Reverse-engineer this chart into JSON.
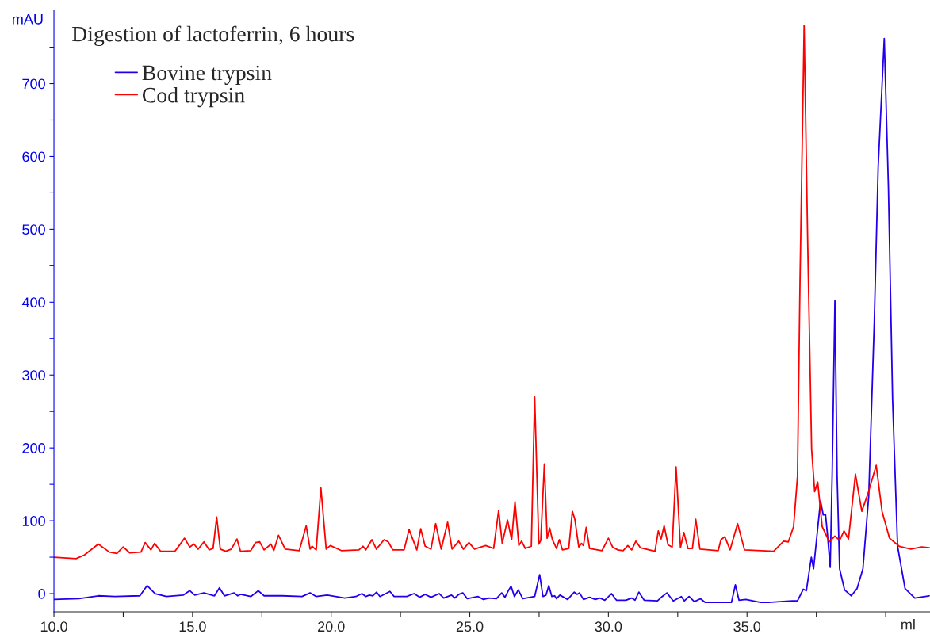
{
  "chart_data": {
    "type": "line",
    "title": "Digestion of lactoferrin, 6 hours",
    "xlabel": "ml",
    "ylabel": "mAU",
    "xlim": [
      10,
      41.6
    ],
    "ylim": [
      -25,
      800
    ],
    "xticks": [
      {
        "value": 10,
        "label": "10.0"
      },
      {
        "value": 12.5,
        "label": null
      },
      {
        "value": 15,
        "label": "15.0"
      },
      {
        "value": 17.5,
        "label": null
      },
      {
        "value": 20,
        "label": "20.0"
      },
      {
        "value": 22.5,
        "label": null
      },
      {
        "value": 25,
        "label": "25.0"
      },
      {
        "value": 27.5,
        "label": null
      },
      {
        "value": 30,
        "label": "30.0"
      },
      {
        "value": 32.5,
        "label": null
      },
      {
        "value": 35,
        "label": "35.0"
      },
      {
        "value": 37.5,
        "label": null
      },
      {
        "value": 40,
        "label": null
      }
    ],
    "yticks": [
      0,
      {
        "value": 50,
        "label": null
      },
      100,
      {
        "value": 150,
        "label": null
      },
      200,
      {
        "value": 250,
        "label": null
      },
      300,
      {
        "value": 350,
        "label": null
      },
      400,
      {
        "value": 450,
        "label": null
      },
      500,
      {
        "value": 550,
        "label": null
      },
      600,
      {
        "value": 650,
        "label": null
      },
      700,
      {
        "value": 750,
        "label": null
      }
    ],
    "legend": "top left",
    "grid": false,
    "marker": "none",
    "line_style": "solid",
    "series": [
      {
        "name": "Bovine trypsin",
        "color": "#2200ee",
        "x": [
          10.0,
          10.9,
          11.6,
          12.2,
          13.1,
          13.36,
          13.65,
          14.06,
          14.67,
          14.9,
          15.08,
          15.41,
          15.79,
          15.97,
          16.15,
          16.5,
          16.63,
          16.73,
          17.1,
          17.37,
          17.58,
          18.23,
          18.95,
          19.24,
          19.46,
          19.86,
          20.49,
          20.89,
          21.11,
          21.25,
          21.38,
          21.5,
          21.64,
          21.76,
          22.12,
          22.27,
          22.73,
          22.99,
          23.19,
          23.39,
          23.6,
          23.9,
          24.06,
          24.34,
          24.46,
          24.61,
          24.75,
          24.91,
          25.3,
          25.49,
          25.69,
          25.96,
          26.15,
          26.27,
          26.39,
          26.49,
          26.61,
          26.75,
          26.91,
          27.34,
          27.52,
          27.64,
          27.75,
          27.85,
          27.96,
          28.06,
          28.13,
          28.25,
          28.53,
          28.77,
          28.87,
          28.96,
          29.1,
          29.32,
          29.53,
          29.68,
          29.87,
          30.11,
          30.29,
          30.63,
          30.84,
          30.96,
          31.1,
          31.29,
          31.77,
          31.94,
          32.11,
          32.34,
          32.63,
          32.74,
          32.91,
          33.1,
          33.32,
          33.49,
          34.44,
          34.58,
          34.71,
          34.96,
          35.49,
          35.77,
          36.63,
          36.82,
          37.03,
          37.14,
          37.32,
          37.4,
          37.65,
          37.75,
          37.83,
          37.9,
          38.0,
          38.07,
          38.17,
          38.25,
          38.34,
          38.52,
          38.76,
          38.97,
          39.18,
          39.39,
          39.59,
          39.73,
          39.95,
          40.1,
          40.25,
          40.43,
          40.7,
          41.05,
          41.57
        ],
        "values": [
          -8,
          -7,
          -3,
          -4,
          -3,
          11,
          0,
          -4,
          -2,
          4,
          -2,
          1,
          -3,
          8,
          -3,
          1,
          -3,
          -1,
          -4,
          4,
          -3,
          -3,
          -4,
          1,
          -4,
          -2,
          -6,
          -4,
          0,
          -4,
          -2,
          -3,
          2,
          -4,
          3,
          -4,
          -4,
          0,
          -5,
          -1,
          -5,
          0,
          -6,
          -2,
          -6,
          -1,
          1,
          -7,
          -4,
          -8,
          -6,
          -7,
          1,
          -5,
          4,
          10,
          -4,
          5,
          -7,
          -4,
          26,
          -4,
          -2,
          11,
          -4,
          -3,
          -7,
          -2,
          -8,
          2,
          -1,
          1,
          -8,
          -5,
          -8,
          -6,
          -9,
          0,
          -9,
          -9,
          -6,
          -9,
          2,
          -9,
          -10,
          -4,
          1,
          -10,
          -4,
          -10,
          -4,
          -11,
          -7,
          -12,
          -12,
          12,
          -9,
          -8,
          -12,
          -12,
          -10,
          -10,
          6,
          4,
          50,
          34,
          127,
          108,
          109,
          82,
          36,
          161,
          402,
          161,
          34,
          5,
          -3,
          7,
          34,
          134,
          373,
          585,
          762,
          558,
          267,
          65,
          7,
          -6,
          -3
        ]
      },
      {
        "name": "Cod trypsin",
        "color": "#ff0000",
        "x": [
          10.0,
          10.8,
          11.1,
          11.6,
          12.0,
          12.27,
          12.5,
          12.73,
          13.14,
          13.29,
          13.5,
          13.63,
          13.85,
          14.36,
          14.46,
          14.71,
          14.9,
          15.05,
          15.2,
          15.41,
          15.6,
          15.74,
          15.87,
          16.0,
          16.2,
          16.4,
          16.6,
          16.73,
          17.1,
          17.27,
          17.42,
          17.58,
          17.83,
          17.93,
          18.1,
          18.34,
          18.85,
          19.1,
          19.24,
          19.31,
          19.46,
          19.63,
          19.82,
          19.97,
          20.37,
          21.0,
          21.15,
          21.25,
          21.47,
          21.63,
          21.91,
          22.06,
          22.22,
          22.63,
          22.81,
          23.09,
          23.23,
          23.39,
          23.6,
          23.77,
          23.97,
          24.2,
          24.36,
          24.6,
          24.77,
          24.97,
          25.17,
          25.57,
          25.86,
          26.04,
          26.17,
          26.36,
          26.51,
          26.63,
          26.77,
          26.87,
          27.0,
          27.22,
          27.34,
          27.49,
          27.56,
          27.69,
          27.79,
          27.88,
          27.98,
          28.13,
          28.23,
          28.34,
          28.57,
          28.7,
          28.79,
          28.93,
          29.03,
          29.1,
          29.2,
          29.32,
          29.77,
          30.0,
          30.15,
          30.34,
          30.53,
          30.7,
          30.84,
          30.99,
          31.15,
          31.68,
          31.8,
          31.9,
          32.01,
          32.15,
          32.3,
          32.44,
          32.6,
          32.72,
          32.87,
          33.03,
          33.15,
          33.3,
          33.96,
          34.06,
          34.2,
          34.39,
          34.66,
          34.91,
          35.96,
          36.32,
          36.49,
          36.68,
          36.82,
          36.91,
          37.06,
          37.19,
          37.33,
          37.44,
          37.55,
          37.71,
          37.97,
          38.17,
          38.34,
          38.5,
          38.66,
          38.91,
          39.14,
          39.36,
          39.66,
          39.87,
          40.14,
          40.49,
          40.91,
          41.3,
          41.57
        ],
        "values": [
          50,
          48,
          53,
          68,
          57,
          55,
          64,
          56,
          57,
          70,
          60,
          69,
          58,
          58,
          63,
          76,
          64,
          68,
          61,
          71,
          60,
          62,
          105,
          61,
          58,
          61,
          75,
          58,
          59,
          70,
          71,
          60,
          68,
          59,
          80,
          61,
          59,
          93,
          61,
          65,
          60,
          145,
          61,
          66,
          59,
          60,
          65,
          60,
          74,
          61,
          74,
          71,
          60,
          60,
          88,
          60,
          89,
          65,
          61,
          96,
          61,
          98,
          61,
          72,
          61,
          70,
          61,
          66,
          62,
          114,
          69,
          101,
          74,
          126,
          66,
          72,
          62,
          65,
          270,
          68,
          73,
          178,
          76,
          90,
          74,
          62,
          74,
          60,
          62,
          113,
          102,
          64,
          69,
          66,
          91,
          62,
          59,
          76,
          64,
          60,
          59,
          66,
          60,
          72,
          63,
          58,
          86,
          75,
          93,
          67,
          64,
          174,
          63,
          84,
          62,
          62,
          102,
          61,
          59,
          74,
          78,
          60,
          96,
          60,
          58,
          72,
          71,
          92,
          161,
          425,
          780,
          479,
          198,
          140,
          153,
          92,
          71,
          79,
          73,
          86,
          75,
          164,
          113,
          137,
          176,
          113,
          76,
          65,
          61,
          64,
          63
        ]
      }
    ]
  }
}
